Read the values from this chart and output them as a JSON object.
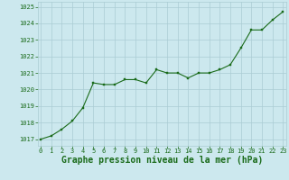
{
  "x": [
    0,
    1,
    2,
    3,
    4,
    5,
    6,
    7,
    8,
    9,
    10,
    11,
    12,
    13,
    14,
    15,
    16,
    17,
    18,
    19,
    20,
    21,
    22,
    23
  ],
  "y": [
    1017.0,
    1017.2,
    1017.6,
    1018.1,
    1018.9,
    1020.4,
    1020.3,
    1020.3,
    1020.6,
    1020.6,
    1020.4,
    1021.2,
    1021.0,
    1021.0,
    1020.7,
    1021.0,
    1021.0,
    1021.2,
    1021.5,
    1022.5,
    1023.6,
    1023.6,
    1024.2,
    1024.7
  ],
  "ylim": [
    1016.6,
    1025.3
  ],
  "xlim": [
    -0.3,
    23.3
  ],
  "yticks": [
    1017,
    1018,
    1019,
    1020,
    1021,
    1022,
    1023,
    1024,
    1025
  ],
  "xticks": [
    0,
    1,
    2,
    3,
    4,
    5,
    6,
    7,
    8,
    9,
    10,
    11,
    12,
    13,
    14,
    15,
    16,
    17,
    18,
    19,
    20,
    21,
    22,
    23
  ],
  "line_color": "#1a6b1a",
  "marker_color": "#1a6b1a",
  "bg_color": "#cce8ee",
  "grid_color": "#aaccd4",
  "xlabel": "Graphe pression niveau de la mer (hPa)",
  "xlabel_color": "#1a6b1a",
  "tick_color": "#1a6b1a",
  "tick_fontsize": 5.0,
  "xlabel_fontsize": 7.0
}
